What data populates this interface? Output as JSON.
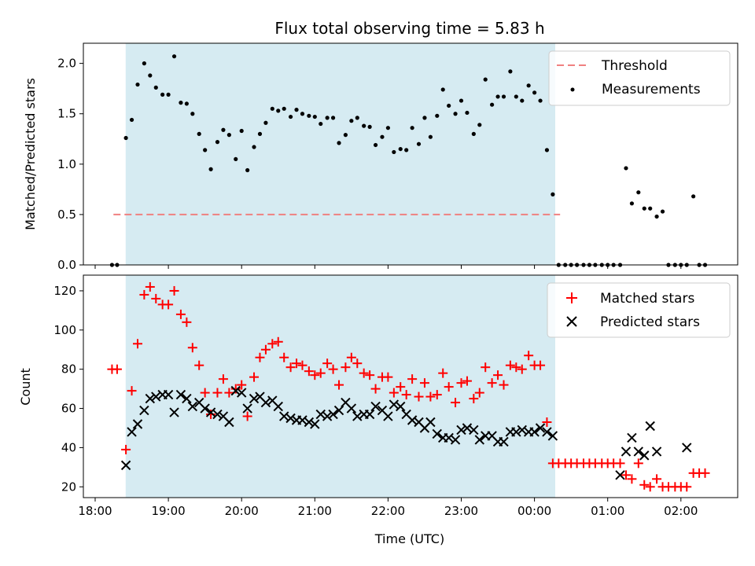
{
  "chart_data": {
    "type": "scatter",
    "title": "Flux total observing time = 5.83 h",
    "shared_x": {
      "label": "Time (UTC)",
      "unit": "hours since 18:00 UTC",
      "tick_labels": [
        "18:00",
        "19:00",
        "20:00",
        "21:00",
        "22:00",
        "23:00",
        "00:00",
        "01:00",
        "02:00"
      ]
    },
    "observing_window": {
      "start": "18:25",
      "end": "00:17"
    },
    "panels": [
      {
        "name": "ratio",
        "ylabel": "Matched/Predicted stars",
        "ylim": [
          0,
          2.2
        ],
        "yticks": [
          "0.0",
          "0.5",
          "1.0",
          "1.5",
          "2.0"
        ],
        "legend_position": "top-right",
        "threshold": {
          "name": "Threshold",
          "value": 0.5,
          "x_range": [
            0.25,
            6.35
          ],
          "color": "#f08080"
        },
        "series": [
          {
            "name": "Measurements",
            "marker": "dot",
            "color": "#000000",
            "x": [
              0.23,
              0.3,
              0.42,
              0.5,
              0.58,
              0.67,
              0.75,
              0.83,
              0.92,
              1.0,
              1.08,
              1.17,
              1.25,
              1.33,
              1.42,
              1.5,
              1.58,
              1.67,
              1.75,
              1.83,
              1.92,
              2.0,
              2.08,
              2.17,
              2.25,
              2.33,
              2.42,
              2.5,
              2.58,
              2.67,
              2.75,
              2.83,
              2.92,
              3.0,
              3.08,
              3.17,
              3.25,
              3.33,
              3.42,
              3.5,
              3.58,
              3.67,
              3.75,
              3.83,
              3.92,
              4.0,
              4.08,
              4.17,
              4.25,
              4.33,
              4.42,
              4.5,
              4.58,
              4.67,
              4.75,
              4.83,
              4.92,
              5.0,
              5.08,
              5.17,
              5.25,
              5.33,
              5.42,
              5.5,
              5.58,
              5.67,
              5.75,
              5.83,
              5.92,
              6.0,
              6.08,
              6.17,
              6.25,
              6.33,
              6.42,
              6.5,
              6.58,
              6.67,
              6.75,
              6.83,
              6.92,
              7.0,
              7.08,
              7.17,
              7.25,
              7.33,
              7.42,
              7.5,
              7.58,
              7.67,
              7.75,
              7.83,
              7.92,
              8.0,
              8.08,
              8.17,
              8.25,
              8.33
            ],
            "values": [
              0,
              0,
              1.26,
              1.44,
              1.79,
              2.0,
              1.88,
              1.76,
              1.69,
              1.69,
              2.07,
              1.61,
              1.6,
              1.5,
              1.3,
              1.14,
              0.95,
              1.22,
              1.34,
              1.29,
              1.05,
              1.33,
              0.94,
              1.17,
              1.3,
              1.41,
              1.55,
              1.53,
              1.55,
              1.47,
              1.54,
              1.5,
              1.48,
              1.47,
              1.4,
              1.46,
              1.46,
              1.21,
              1.29,
              1.43,
              1.46,
              1.38,
              1.37,
              1.19,
              1.27,
              1.36,
              1.12,
              1.15,
              1.14,
              1.36,
              1.2,
              1.46,
              1.27,
              1.48,
              1.74,
              1.58,
              1.5,
              1.63,
              1.51,
              1.3,
              1.39,
              1.84,
              1.59,
              1.67,
              1.67,
              1.92,
              1.67,
              1.63,
              1.78,
              1.71,
              1.63,
              1.14,
              0.7,
              0,
              0,
              0,
              0,
              0,
              0,
              0,
              0,
              0,
              0,
              0,
              0.96,
              0.61,
              0.72,
              0.56,
              0.56,
              0.48,
              0.53,
              0,
              0,
              0,
              0,
              0.68,
              0,
              0
            ]
          }
        ]
      },
      {
        "name": "counts",
        "ylabel": "Count",
        "ylim": [
          14.5,
          128
        ],
        "yticks": [
          "20",
          "40",
          "60",
          "80",
          "100",
          "120"
        ],
        "legend_position": "top-right",
        "series": [
          {
            "name": "Matched stars",
            "marker": "plus",
            "color": "#ff0000",
            "x": [
              0.23,
              0.3,
              0.42,
              0.5,
              0.58,
              0.67,
              0.75,
              0.83,
              0.92,
              1.0,
              1.08,
              1.17,
              1.25,
              1.33,
              1.42,
              1.5,
              1.58,
              1.67,
              1.75,
              1.83,
              1.92,
              2.0,
              2.08,
              2.17,
              2.25,
              2.33,
              2.42,
              2.5,
              2.58,
              2.67,
              2.75,
              2.83,
              2.92,
              3.0,
              3.08,
              3.17,
              3.25,
              3.33,
              3.42,
              3.5,
              3.58,
              3.67,
              3.75,
              3.83,
              3.92,
              4.0,
              4.08,
              4.17,
              4.25,
              4.33,
              4.42,
              4.5,
              4.58,
              4.67,
              4.75,
              4.83,
              4.92,
              5.0,
              5.08,
              5.17,
              5.25,
              5.33,
              5.42,
              5.5,
              5.58,
              5.67,
              5.75,
              5.83,
              5.92,
              6.0,
              6.08,
              6.17,
              6.25,
              6.33,
              6.42,
              6.5,
              6.58,
              6.67,
              6.75,
              6.83,
              6.92,
              7.0,
              7.08,
              7.17,
              7.25,
              7.33,
              7.42,
              7.5,
              7.58,
              7.67,
              7.75,
              7.83,
              7.92,
              8.0,
              8.08,
              8.17,
              8.25,
              8.33
            ],
            "values": [
              80,
              80,
              39,
              69,
              93,
              118,
              122,
              116,
              113,
              113,
              120,
              108,
              104,
              91,
              82,
              68,
              57,
              68,
              75,
              68,
              70,
              72,
              56,
              76,
              86,
              90,
              93,
              94,
              86,
              81,
              83,
              82,
              79,
              77,
              78,
              83,
              80,
              72,
              81,
              86,
              83,
              78,
              77,
              70,
              76,
              76,
              68,
              71,
              67,
              75,
              66,
              73,
              66,
              67,
              78,
              71,
              63,
              73,
              74,
              65,
              68,
              81,
              73,
              77,
              72,
              82,
              81,
              80,
              87,
              82,
              82,
              53,
              32,
              32,
              32,
              32,
              32,
              32,
              32,
              32,
              32,
              32,
              32,
              32,
              26,
              24,
              32,
              21,
              20,
              24,
              20,
              20,
              20,
              20,
              20,
              27,
              27,
              27
            ]
          },
          {
            "name": "Predicted stars",
            "marker": "x",
            "color": "#000000",
            "x": [
              0.42,
              0.5,
              0.58,
              0.67,
              0.75,
              0.83,
              0.92,
              1.0,
              1.08,
              1.17,
              1.25,
              1.33,
              1.42,
              1.5,
              1.58,
              1.67,
              1.75,
              1.83,
              1.92,
              2.0,
              2.08,
              2.17,
              2.25,
              2.33,
              2.42,
              2.5,
              2.58,
              2.67,
              2.75,
              2.83,
              2.92,
              3.0,
              3.08,
              3.17,
              3.25,
              3.33,
              3.42,
              3.5,
              3.58,
              3.67,
              3.75,
              3.83,
              3.92,
              4.0,
              4.08,
              4.17,
              4.25,
              4.33,
              4.42,
              4.5,
              4.58,
              4.67,
              4.75,
              4.83,
              4.92,
              5.0,
              5.08,
              5.17,
              5.25,
              5.33,
              5.42,
              5.5,
              5.58,
              5.67,
              5.75,
              5.83,
              5.92,
              6.0,
              6.08,
              6.17,
              6.25,
              7.17,
              7.25,
              7.33,
              7.42,
              7.5,
              7.58,
              7.67,
              8.08
            ],
            "values": [
              31,
              48,
              52,
              59,
              65,
              66,
              67,
              67,
              58,
              67,
              65,
              61,
              63,
              60,
              58,
              57,
              56,
              53,
              69,
              68,
              60,
              65,
              66,
              63,
              64,
              61,
              56,
              55,
              54,
              54,
              53,
              52,
              57,
              56,
              57,
              59,
              63,
              60,
              56,
              57,
              57,
              61,
              59,
              56,
              62,
              61,
              57,
              54,
              53,
              50,
              53,
              47,
              45,
              45,
              44,
              49,
              50,
              49,
              44,
              46,
              46,
              43,
              43,
              48,
              48,
              49,
              48,
              48,
              50,
              48,
              46,
              26,
              38,
              45,
              38,
              36,
              51,
              38,
              40
            ]
          }
        ]
      }
    ]
  }
}
